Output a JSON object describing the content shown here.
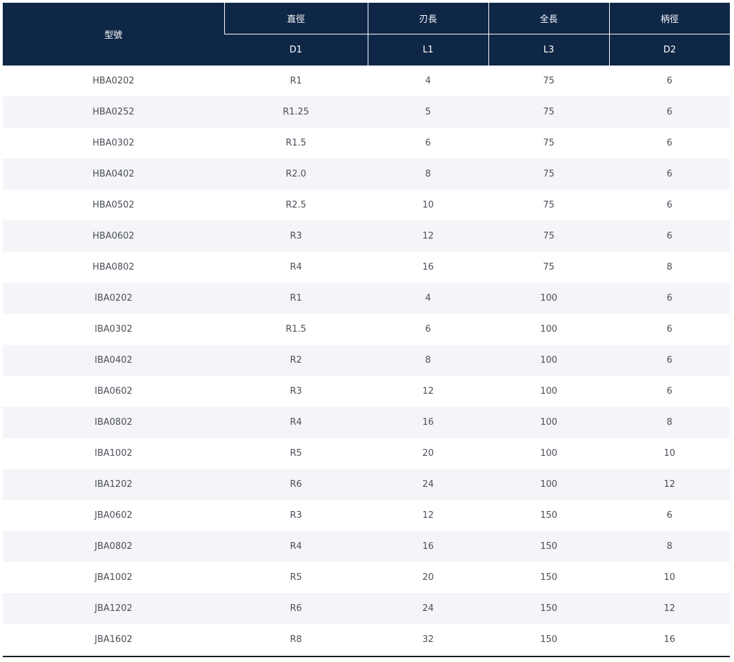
{
  "table": {
    "headers": {
      "model": "型號",
      "groups": [
        "直徑",
        "刃長",
        "全長",
        "柄徑"
      ],
      "codes": [
        "D1",
        "L1",
        "L3",
        "D2"
      ]
    },
    "rows": [
      [
        "HBA0202",
        "R1",
        "4",
        "75",
        "6"
      ],
      [
        "HBA0252",
        "R1.25",
        "5",
        "75",
        "6"
      ],
      [
        "HBA0302",
        "R1.5",
        "6",
        "75",
        "6"
      ],
      [
        "HBA0402",
        "R2.0",
        "8",
        "75",
        "6"
      ],
      [
        "HBA0502",
        "R2.5",
        "10",
        "75",
        "6"
      ],
      [
        "HBA0602",
        "R3",
        "12",
        "75",
        "6"
      ],
      [
        "HBA0802",
        "R4",
        "16",
        "75",
        "8"
      ],
      [
        "IBA0202",
        "R1",
        "4",
        "100",
        "6"
      ],
      [
        "IBA0302",
        "R1.5",
        "6",
        "100",
        "6"
      ],
      [
        "IBA0402",
        "R2",
        "8",
        "100",
        "6"
      ],
      [
        "IBA0602",
        "R3",
        "12",
        "100",
        "6"
      ],
      [
        "IBA0802",
        "R4",
        "16",
        "100",
        "8"
      ],
      [
        "IBA1002",
        "R5",
        "20",
        "100",
        "10"
      ],
      [
        "IBA1202",
        "R6",
        "24",
        "100",
        "12"
      ],
      [
        "JBA0602",
        "R3",
        "12",
        "150",
        "6"
      ],
      [
        "JBA0802",
        "R4",
        "16",
        "150",
        "8"
      ],
      [
        "JBA1002",
        "R5",
        "20",
        "150",
        "10"
      ],
      [
        "JBA1202",
        "R6",
        "24",
        "150",
        "12"
      ],
      [
        "JBA1602",
        "R8",
        "32",
        "150",
        "16"
      ]
    ]
  },
  "colors": {
    "header_bg": "#0f2747",
    "header_text": "#ffffff",
    "row_alt_bg": "#f4f4f9",
    "text": "#4a4f58"
  }
}
